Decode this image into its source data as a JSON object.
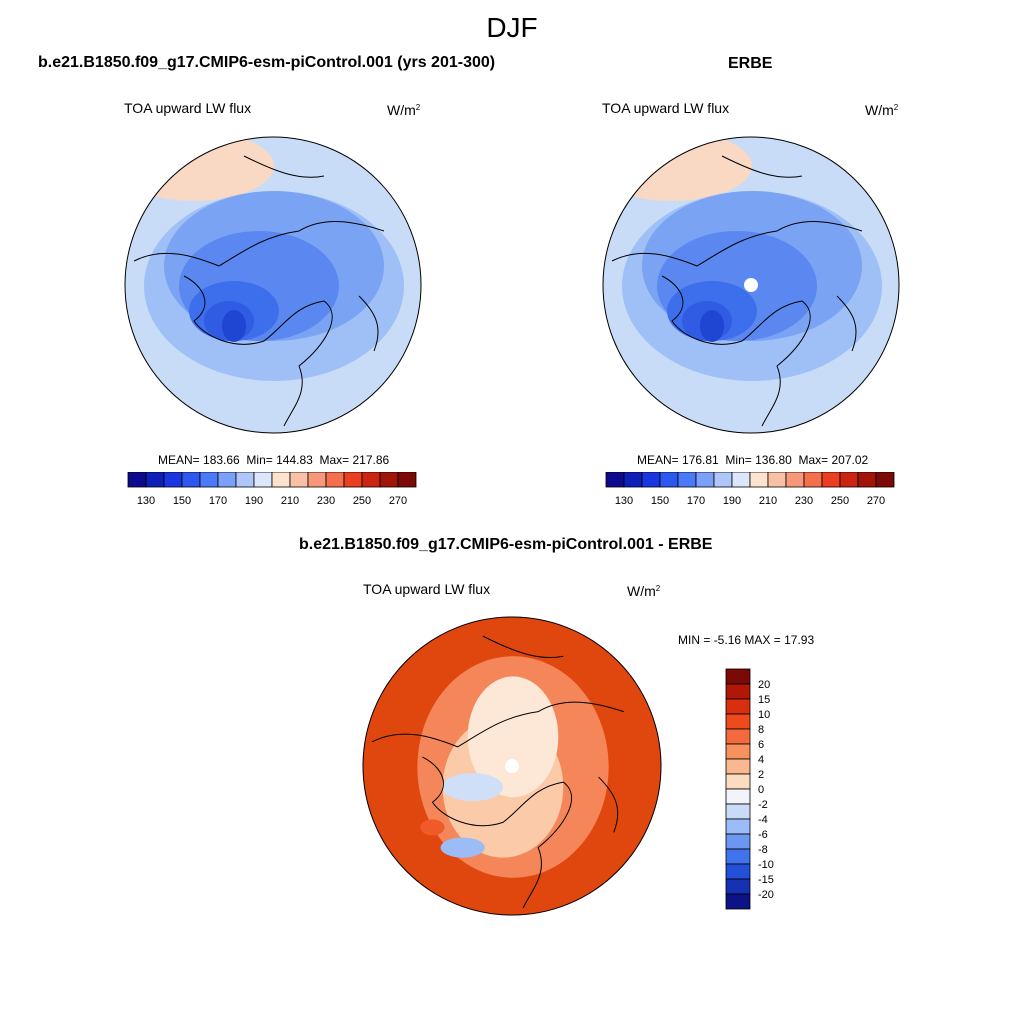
{
  "season": "DJF",
  "panels": {
    "model": {
      "case": "b.e21.B1850.f09_g17.CMIP6-esm-piControl.001 (yrs 201-300)",
      "variable": "TOA upward LW flux",
      "units": "W/m",
      "units_exp": "2",
      "mean": "183.66",
      "min": "144.83",
      "max": "217.86"
    },
    "obs": {
      "case": "ERBE",
      "variable": "TOA upward LW flux",
      "units": "W/m",
      "units_exp": "2",
      "mean": "176.81",
      "min": "136.80",
      "max": "207.02"
    },
    "diff": {
      "case": "b.e21.B1850.f09_g17.CMIP6-esm-piControl.001 - ERBE",
      "variable": "TOA upward LW flux",
      "units": "W/m",
      "units_exp": "2",
      "min": "-5.16",
      "max": "17.93"
    }
  },
  "labels": {
    "mean": "MEAN=",
    "min": "Min=",
    "max": "Max=",
    "MIN": "MIN =",
    "MAX": "MAX ="
  },
  "colorbar_main": {
    "ticks": [
      "130",
      "150",
      "170",
      "190",
      "210",
      "230",
      "250",
      "270"
    ],
    "colors": [
      "#0c0b8e",
      "#0e1fb8",
      "#1a36e0",
      "#2c58f0",
      "#4a7af7",
      "#7ba0f7",
      "#aec6f8",
      "#dbe7fb",
      "#fce2cf",
      "#f9c0a6",
      "#f7987a",
      "#f46f4e",
      "#ea4021",
      "#ca2510",
      "#a11408",
      "#7c0905"
    ]
  },
  "colorbar_diff": {
    "ticks": [
      "20",
      "15",
      "10",
      "8",
      "6",
      "4",
      "2",
      "0",
      "-2",
      "-4",
      "-6",
      "-8",
      "-10",
      "-15",
      "-20"
    ],
    "colors": [
      "#7b0905",
      "#b01707",
      "#d8300d",
      "#ee4a1b",
      "#f46a3f",
      "#f7925f",
      "#f9b88f",
      "#fcdcc1",
      "#f2f4fa",
      "#c9dbf7",
      "#9bbcf6",
      "#6b97f1",
      "#4173ec",
      "#2350d8",
      "#1631b2",
      "#0b1386"
    ]
  },
  "maps": {
    "model": {
      "base": "#c9dcf7",
      "regions": [
        "#f9d8c4",
        "#9fbff7",
        "#7aa3f3",
        "#5a88f0",
        "#3d6eec",
        "#2f5ce3",
        "#1f46d0"
      ]
    },
    "obs": {
      "base": "#c9dcf7",
      "regions": [
        "#f9d8c4",
        "#9fbff7",
        "#7aa3f3",
        "#5a88f0",
        "#3d6eec",
        "#2f5ce3",
        "#1f46d0"
      ]
    },
    "diff": {
      "base": "#e0470f",
      "regions": [
        "#f5865a",
        "#fbcaa9",
        "#fde8d8",
        "#cfdff8",
        "#9cbcf6",
        "#ef5a28"
      ]
    }
  }
}
